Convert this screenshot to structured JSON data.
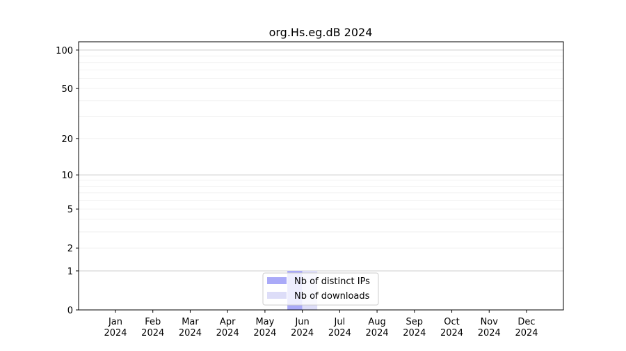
{
  "chart_data": {
    "type": "bar",
    "title": "org.Hs.eg.dB 2024",
    "xlabel": "",
    "ylabel": "",
    "categories": [
      "Jan\n2024",
      "Feb\n2024",
      "Mar\n2024",
      "Apr\n2024",
      "May\n2024",
      "Jun\n2024",
      "Jul\n2024",
      "Aug\n2024",
      "Sep\n2024",
      "Oct\n2024",
      "Nov\n2024",
      "Dec\n2024"
    ],
    "series": [
      {
        "name": "Nb of distinct IPs",
        "color": "#aaaaf8",
        "values": [
          0,
          0,
          0,
          0,
          0,
          1,
          0,
          0,
          0,
          0,
          0,
          0
        ]
      },
      {
        "name": "Nb of downloads",
        "color": "#ddddf8",
        "values": [
          0,
          0,
          0,
          0,
          0,
          1,
          0,
          0,
          0,
          0,
          0,
          0
        ]
      }
    ],
    "y_scale": "log(1+y)",
    "yticks": [
      0,
      1,
      2,
      5,
      10,
      20,
      50,
      100
    ],
    "ylim": [
      0,
      116
    ],
    "grid": true,
    "legend": "bottom-center"
  }
}
